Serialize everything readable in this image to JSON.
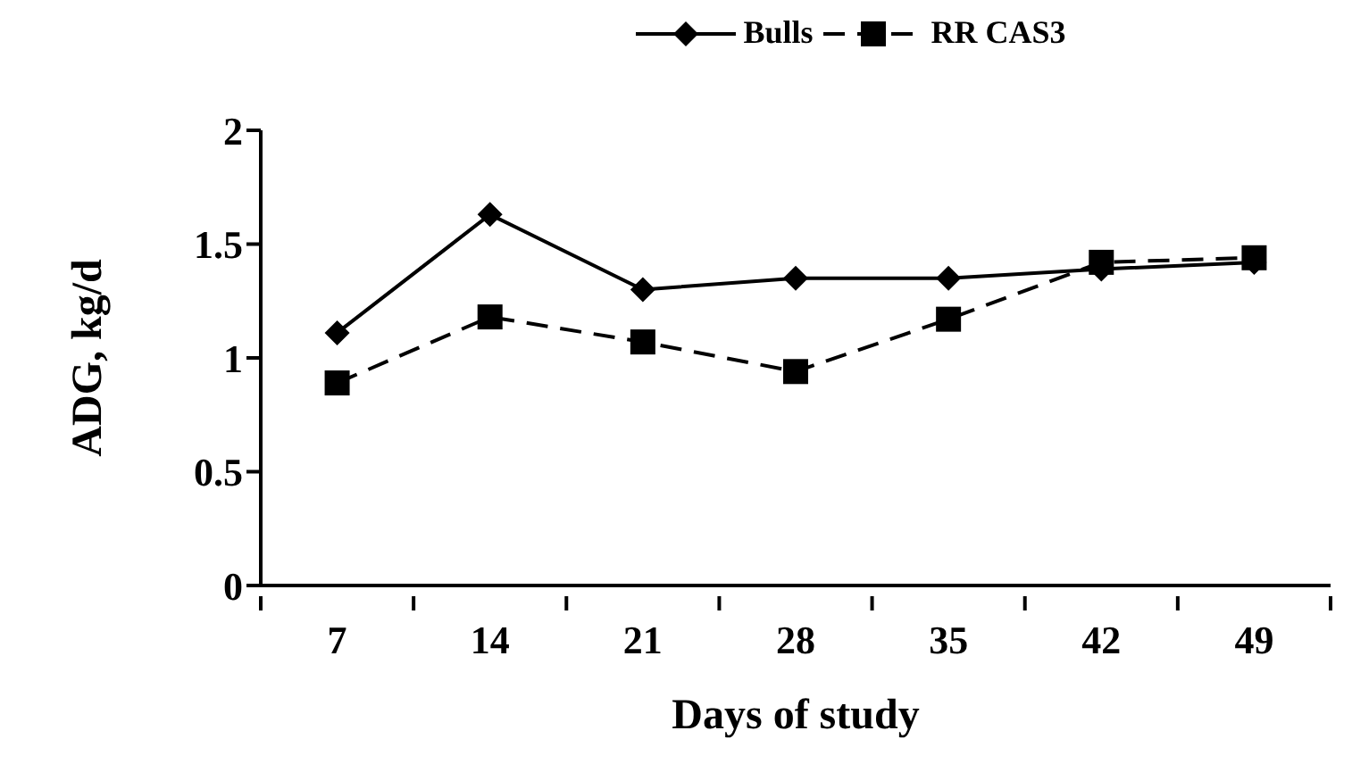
{
  "chart_data": {
    "type": "line",
    "xlabel": "Days of study",
    "ylabel": "ADG, kg/d",
    "categories": [
      "7",
      "14",
      "21",
      "28",
      "35",
      "42",
      "49"
    ],
    "series": [
      {
        "name": "Bulls",
        "color": "#000000",
        "marker": "diamond",
        "line_style": "solid",
        "values": [
          1.11,
          1.63,
          1.3,
          1.35,
          1.35,
          1.39,
          1.42
        ]
      },
      {
        "name": "RR CAS3",
        "color": "#000000",
        "marker": "square",
        "line_style": "dashed",
        "values": [
          0.89,
          1.18,
          1.07,
          0.94,
          1.17,
          1.42,
          1.44
        ]
      }
    ],
    "ylim": [
      0,
      2
    ],
    "yticks": [
      0,
      0.5,
      1,
      1.5,
      2
    ],
    "grid": false,
    "legend": "top"
  }
}
